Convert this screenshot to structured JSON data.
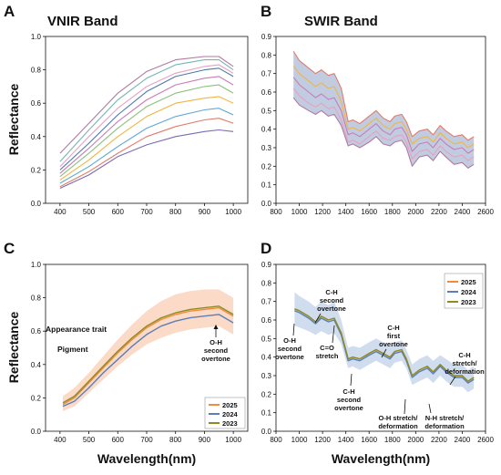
{
  "colors": {
    "y2025": "#F28C3C",
    "y2024": "#5B7FB7",
    "y2023": "#8C8C22",
    "bandC": "#F9CDB6",
    "bandD": "#C4D4EA"
  },
  "chart_data": [
    {
      "panel": "A",
      "type": "line",
      "title": "VNIR Band",
      "xlabel": "",
      "ylabel": "Reflectance",
      "xlim": [
        350,
        1050
      ],
      "ylim": [
        0.0,
        1.0
      ],
      "xticks": [
        400,
        500,
        600,
        700,
        800,
        900,
        1000
      ],
      "yticks": [
        0.0,
        0.2,
        0.4,
        0.6,
        0.8,
        1.0
      ],
      "ytick_labels": [
        "0.0",
        "0.2",
        "0.4",
        "0.6",
        "0.8",
        "1.0"
      ],
      "x": [
        400,
        500,
        600,
        700,
        800,
        900,
        950,
        1000
      ],
      "series": [
        {
          "values": [
            0.09,
            0.17,
            0.28,
            0.35,
            0.4,
            0.43,
            0.44,
            0.43
          ]
        },
        {
          "values": [
            0.1,
            0.19,
            0.3,
            0.4,
            0.46,
            0.5,
            0.51,
            0.48
          ]
        },
        {
          "values": [
            0.12,
            0.22,
            0.34,
            0.45,
            0.52,
            0.56,
            0.57,
            0.53
          ]
        },
        {
          "values": [
            0.14,
            0.26,
            0.4,
            0.52,
            0.6,
            0.63,
            0.64,
            0.6
          ]
        },
        {
          "values": [
            0.16,
            0.3,
            0.45,
            0.58,
            0.66,
            0.7,
            0.71,
            0.66
          ]
        },
        {
          "values": [
            0.18,
            0.33,
            0.49,
            0.62,
            0.71,
            0.75,
            0.76,
            0.71
          ]
        },
        {
          "values": [
            0.2,
            0.36,
            0.53,
            0.67,
            0.76,
            0.8,
            0.81,
            0.76
          ]
        },
        {
          "values": [
            0.22,
            0.4,
            0.57,
            0.7,
            0.78,
            0.82,
            0.83,
            0.78
          ]
        },
        {
          "values": [
            0.25,
            0.44,
            0.62,
            0.75,
            0.83,
            0.86,
            0.86,
            0.8
          ]
        },
        {
          "values": [
            0.3,
            0.48,
            0.66,
            0.79,
            0.86,
            0.88,
            0.88,
            0.82
          ]
        }
      ]
    },
    {
      "panel": "B",
      "type": "line",
      "title": "SWIR Band",
      "xlabel": "",
      "ylabel": "",
      "xlim": [
        800,
        2600
      ],
      "ylim": [
        0.0,
        0.9
      ],
      "xticks": [
        800,
        1000,
        1200,
        1400,
        1600,
        1800,
        2000,
        2200,
        2400,
        2600
      ],
      "yticks": [
        0.0,
        0.1,
        0.2,
        0.3,
        0.4,
        0.5,
        0.6,
        0.7,
        0.8,
        0.9
      ],
      "x": [
        950,
        1000,
        1080,
        1140,
        1190,
        1250,
        1300,
        1360,
        1420,
        1460,
        1520,
        1600,
        1660,
        1720,
        1780,
        1820,
        1880,
        1920,
        1970,
        2030,
        2100,
        2150,
        2210,
        2260,
        2330,
        2400,
        2450,
        2500
      ],
      "series": [
        {
          "values": [
            0.82,
            0.77,
            0.73,
            0.7,
            0.72,
            0.69,
            0.7,
            0.62,
            0.44,
            0.45,
            0.43,
            0.47,
            0.5,
            0.46,
            0.44,
            0.47,
            0.48,
            0.44,
            0.36,
            0.39,
            0.4,
            0.37,
            0.42,
            0.39,
            0.36,
            0.37,
            0.34,
            0.36
          ]
        },
        {
          "values": [
            0.74,
            0.7,
            0.66,
            0.63,
            0.65,
            0.62,
            0.63,
            0.55,
            0.4,
            0.41,
            0.39,
            0.43,
            0.46,
            0.42,
            0.4,
            0.43,
            0.44,
            0.4,
            0.32,
            0.35,
            0.36,
            0.33,
            0.38,
            0.35,
            0.32,
            0.33,
            0.3,
            0.32
          ]
        },
        {
          "values": [
            0.68,
            0.64,
            0.6,
            0.57,
            0.59,
            0.56,
            0.57,
            0.5,
            0.37,
            0.38,
            0.36,
            0.4,
            0.43,
            0.39,
            0.37,
            0.4,
            0.41,
            0.37,
            0.28,
            0.32,
            0.33,
            0.3,
            0.35,
            0.32,
            0.29,
            0.3,
            0.27,
            0.29
          ]
        },
        {
          "values": [
            0.62,
            0.58,
            0.54,
            0.52,
            0.54,
            0.51,
            0.52,
            0.45,
            0.33,
            0.34,
            0.32,
            0.36,
            0.39,
            0.35,
            0.34,
            0.36,
            0.37,
            0.33,
            0.24,
            0.28,
            0.29,
            0.26,
            0.31,
            0.28,
            0.25,
            0.26,
            0.23,
            0.25
          ]
        },
        {
          "values": [
            0.57,
            0.53,
            0.5,
            0.48,
            0.5,
            0.47,
            0.48,
            0.42,
            0.31,
            0.32,
            0.3,
            0.33,
            0.36,
            0.32,
            0.31,
            0.33,
            0.34,
            0.3,
            0.2,
            0.25,
            0.26,
            0.23,
            0.28,
            0.25,
            0.21,
            0.22,
            0.19,
            0.21
          ]
        }
      ]
    },
    {
      "panel": "C",
      "type": "line",
      "title": "",
      "xlabel": "Wavelength(nm)",
      "ylabel": "Reflectance",
      "xlim": [
        350,
        1050
      ],
      "ylim": [
        0.0,
        1.0
      ],
      "xticks": [
        400,
        500,
        600,
        700,
        800,
        900,
        1000
      ],
      "yticks": [
        0.0,
        0.2,
        0.4,
        0.6,
        0.8,
        1.0
      ],
      "ytick_labels": [
        "0.0",
        "0.2",
        "0.4",
        "0.6",
        "0.8",
        "1.0"
      ],
      "x": [
        410,
        450,
        500,
        550,
        600,
        650,
        700,
        750,
        800,
        850,
        900,
        950,
        1000
      ],
      "band_upper": [
        0.21,
        0.26,
        0.35,
        0.45,
        0.55,
        0.64,
        0.72,
        0.78,
        0.82,
        0.84,
        0.85,
        0.85,
        0.8
      ],
      "band_lower": [
        0.12,
        0.15,
        0.23,
        0.31,
        0.39,
        0.46,
        0.52,
        0.56,
        0.59,
        0.61,
        0.62,
        0.63,
        0.58
      ],
      "series": [
        {
          "name": "2025",
          "values": [
            0.16,
            0.2,
            0.29,
            0.38,
            0.47,
            0.55,
            0.62,
            0.67,
            0.7,
            0.72,
            0.73,
            0.74,
            0.69
          ]
        },
        {
          "name": "2024",
          "values": [
            0.15,
            0.18,
            0.26,
            0.35,
            0.43,
            0.51,
            0.58,
            0.63,
            0.66,
            0.68,
            0.69,
            0.7,
            0.65
          ]
        },
        {
          "name": "2023",
          "values": [
            0.17,
            0.21,
            0.3,
            0.39,
            0.48,
            0.56,
            0.63,
            0.68,
            0.71,
            0.73,
            0.74,
            0.75,
            0.7
          ]
        }
      ],
      "annotations": [
        "Appearance trait",
        "Pigment",
        "O-H",
        "second",
        "overtone"
      ],
      "legend": "bottom-right"
    },
    {
      "panel": "D",
      "type": "line",
      "title": "",
      "xlabel": "Wavelength(nm)",
      "ylabel": "",
      "xlim": [
        800,
        2600
      ],
      "ylim": [
        0.0,
        0.9
      ],
      "xticks": [
        800,
        1000,
        1200,
        1400,
        1600,
        1800,
        2000,
        2200,
        2400,
        2600
      ],
      "yticks": [
        0.0,
        0.1,
        0.2,
        0.3,
        0.4,
        0.5,
        0.6,
        0.7,
        0.8,
        0.9
      ],
      "x": [
        960,
        1000,
        1080,
        1140,
        1190,
        1250,
        1300,
        1360,
        1420,
        1460,
        1520,
        1600,
        1660,
        1720,
        1780,
        1820,
        1880,
        1920,
        1970,
        2030,
        2100,
        2150,
        2210,
        2260,
        2330,
        2400,
        2450,
        2500
      ],
      "band_upper": [
        0.75,
        0.73,
        0.7,
        0.67,
        0.7,
        0.68,
        0.7,
        0.6,
        0.45,
        0.46,
        0.45,
        0.48,
        0.5,
        0.48,
        0.46,
        0.48,
        0.49,
        0.44,
        0.36,
        0.39,
        0.41,
        0.38,
        0.41,
        0.39,
        0.36,
        0.36,
        0.33,
        0.35
      ],
      "band_lower": [
        0.57,
        0.56,
        0.54,
        0.52,
        0.54,
        0.52,
        0.53,
        0.47,
        0.34,
        0.35,
        0.33,
        0.36,
        0.38,
        0.36,
        0.34,
        0.37,
        0.38,
        0.34,
        0.25,
        0.27,
        0.29,
        0.26,
        0.3,
        0.27,
        0.24,
        0.24,
        0.21,
        0.23
      ],
      "series": [
        {
          "name": "2025",
          "values": [
            0.66,
            0.65,
            0.62,
            0.59,
            0.62,
            0.6,
            0.61,
            0.53,
            0.39,
            0.4,
            0.39,
            0.42,
            0.44,
            0.42,
            0.4,
            0.43,
            0.44,
            0.39,
            0.3,
            0.33,
            0.35,
            0.32,
            0.36,
            0.33,
            0.3,
            0.3,
            0.27,
            0.29
          ]
        },
        {
          "name": "2024",
          "values": [
            0.65,
            0.64,
            0.61,
            0.58,
            0.61,
            0.59,
            0.6,
            0.52,
            0.38,
            0.39,
            0.38,
            0.41,
            0.43,
            0.41,
            0.39,
            0.42,
            0.43,
            0.38,
            0.29,
            0.32,
            0.34,
            0.31,
            0.35,
            0.32,
            0.29,
            0.29,
            0.26,
            0.28
          ]
        },
        {
          "name": "2023",
          "values": [
            0.66,
            0.65,
            0.62,
            0.59,
            0.62,
            0.6,
            0.61,
            0.53,
            0.39,
            0.4,
            0.39,
            0.42,
            0.44,
            0.42,
            0.4,
            0.43,
            0.44,
            0.39,
            0.3,
            0.33,
            0.35,
            0.32,
            0.36,
            0.33,
            0.3,
            0.3,
            0.27,
            0.29
          ]
        }
      ],
      "annotations": [
        [
          "O-H",
          "second",
          "overtone"
        ],
        [
          "C-H",
          "second",
          "overtone"
        ],
        [
          "C=O",
          "stretch"
        ],
        [
          "C-H",
          "second",
          "overtone"
        ],
        [
          "C-H",
          "first",
          "overtone"
        ],
        [
          "O-H stretch/",
          "deformation"
        ],
        [
          "N-H stretch/",
          "deformation"
        ],
        [
          "C-H",
          "stretch/",
          "deformation"
        ]
      ],
      "legend": "top-right"
    }
  ]
}
